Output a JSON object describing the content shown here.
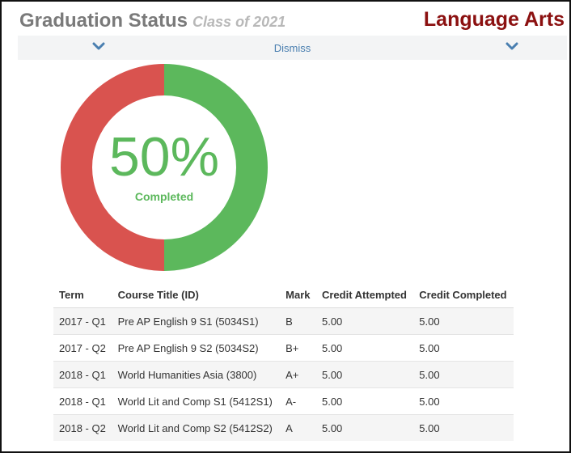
{
  "header": {
    "title": "Graduation Status",
    "subtitle": "Class of 2021",
    "subject": "Language Arts"
  },
  "dismiss_bar": {
    "label": "Dismiss",
    "left_icon": "chevron-down-icon",
    "right_icon": "chevron-down-icon"
  },
  "progress": {
    "percent_label": "50%",
    "status_label": "Completed",
    "completed_fraction": 0.5,
    "colors": {
      "completed": "#5cb85c",
      "remaining": "#d9534f"
    }
  },
  "table": {
    "columns": [
      "Term",
      "Course Title (ID)",
      "Mark",
      "Credit Attempted",
      "Credit Completed"
    ],
    "rows": [
      {
        "term": "2017 - Q1",
        "course": "Pre AP English 9 S1 (5034S1)",
        "mark": "B",
        "attempted": "5.00",
        "completed": "5.00"
      },
      {
        "term": "2017 - Q2",
        "course": "Pre AP English 9 S2 (5034S2)",
        "mark": "B+",
        "attempted": "5.00",
        "completed": "5.00"
      },
      {
        "term": "2018 - Q1",
        "course": "World Humanities Asia (3800)",
        "mark": "A+",
        "attempted": "5.00",
        "completed": "5.00"
      },
      {
        "term": "2018 - Q1",
        "course": "World Lit and Comp S1 (5412S1)",
        "mark": "A-",
        "attempted": "5.00",
        "completed": "5.00"
      },
      {
        "term": "2018 - Q2",
        "course": "World Lit and Comp S2 (5412S2)",
        "mark": "A",
        "attempted": "5.00",
        "completed": "5.00"
      }
    ]
  }
}
